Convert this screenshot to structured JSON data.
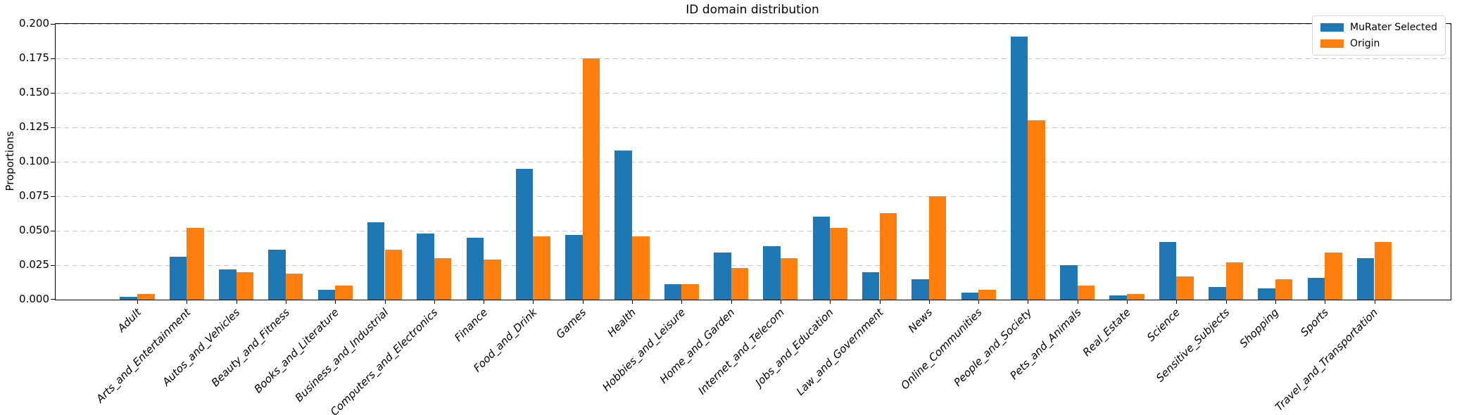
{
  "title": "ID domain distribution",
  "ylabel": "Proportions",
  "colors": {
    "murater_selected": "#1f77b4",
    "origin": "#ff7f0e",
    "grid": "#c9c9c9",
    "spine": "#000000",
    "legend_border": "#d5d5d5"
  },
  "legend": {
    "position": "upper right",
    "items": [
      {
        "label": "MuRater Selected",
        "color": "#1f77b4"
      },
      {
        "label": "Origin",
        "color": "#ff7f0e"
      }
    ]
  },
  "chart_data": {
    "type": "bar",
    "title": "ID domain distribution",
    "xlabel": "",
    "ylabel": "Proportions",
    "ylim": [
      0,
      0.2
    ],
    "ytick_step": 0.025,
    "ytick_format": "3-decimals",
    "grid": "horizontal dashed",
    "legend_position": "upper right",
    "x_label_rotation_deg": 45,
    "categories": [
      "Adult",
      "Arts_and_Entertainment",
      "Autos_and_Vehicles",
      "Beauty_and_Fitness",
      "Books_and_Literature",
      "Business_and_Industrial",
      "Computers_and_Electronics",
      "Finance",
      "Food_and_Drink",
      "Games",
      "Health",
      "Hobbies_and_Leisure",
      "Home_and_Garden",
      "Internet_and_Telecom",
      "Jobs_and_Education",
      "Law_and_Government",
      "News",
      "Online_Communities",
      "People_and_Society",
      "Pets_and_Animals",
      "Real_Estate",
      "Science",
      "Sensitive_Subjects",
      "Shopping",
      "Sports",
      "Travel_and_Transportation"
    ],
    "series": [
      {
        "name": "MuRater Selected",
        "color": "#1f77b4",
        "values": [
          0.002,
          0.031,
          0.022,
          0.036,
          0.007,
          0.056,
          0.048,
          0.045,
          0.095,
          0.047,
          0.108,
          0.011,
          0.034,
          0.039,
          0.06,
          0.02,
          0.015,
          0.005,
          0.191,
          0.025,
          0.003,
          0.042,
          0.009,
          0.008,
          0.016,
          0.03
        ]
      },
      {
        "name": "Origin",
        "color": "#ff7f0e",
        "values": [
          0.004,
          0.052,
          0.02,
          0.019,
          0.01,
          0.036,
          0.03,
          0.029,
          0.046,
          0.175,
          0.046,
          0.011,
          0.023,
          0.03,
          0.052,
          0.063,
          0.075,
          0.007,
          0.13,
          0.01,
          0.004,
          0.017,
          0.027,
          0.015,
          0.034,
          0.042
        ]
      }
    ]
  }
}
